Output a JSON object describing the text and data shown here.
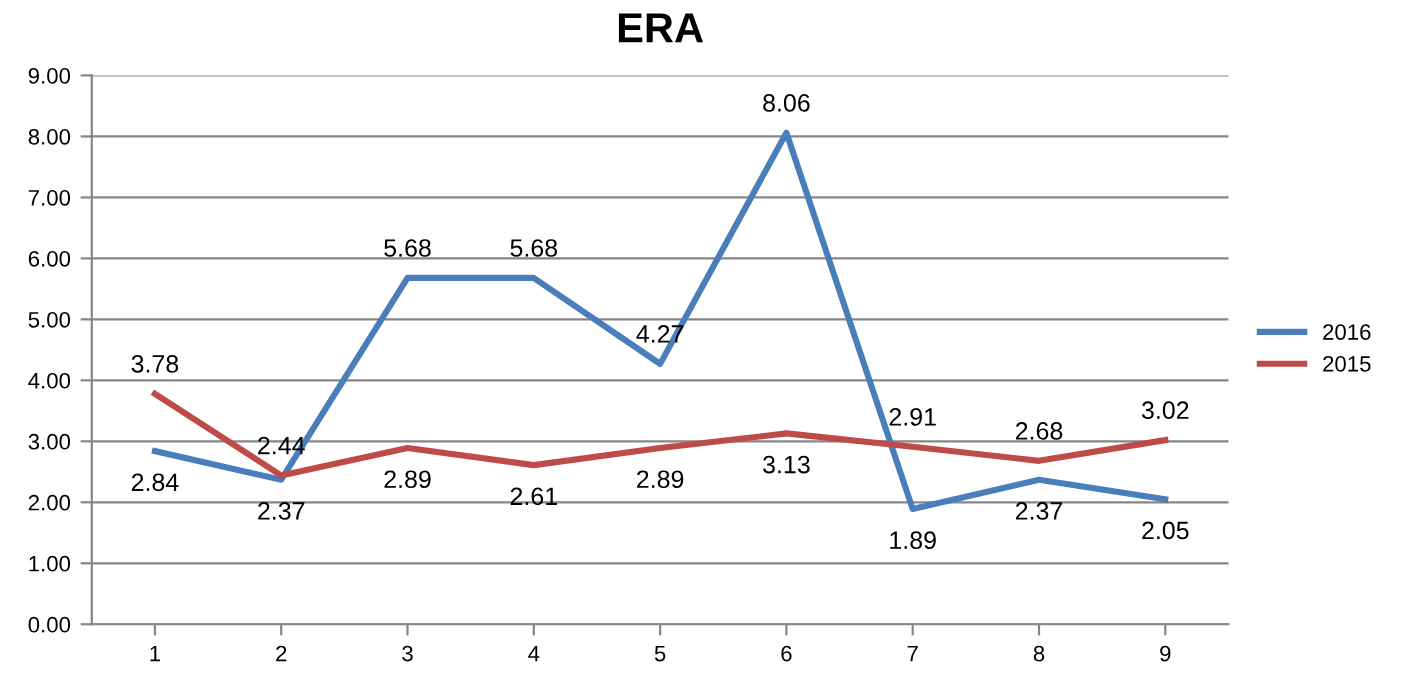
{
  "chart_data": {
    "type": "line",
    "title": "ERA",
    "categories": [
      "1",
      "2",
      "3",
      "4",
      "5",
      "6",
      "7",
      "8",
      "9"
    ],
    "series": [
      {
        "name": "2016",
        "color": "#4a7ebb",
        "values": [
          2.84,
          2.37,
          5.68,
          5.68,
          4.27,
          8.06,
          1.89,
          2.37,
          2.05
        ]
      },
      {
        "name": "2015",
        "color": "#be4b48",
        "values": [
          3.78,
          2.44,
          2.89,
          2.61,
          2.89,
          3.13,
          2.91,
          2.68,
          3.02
        ]
      }
    ],
    "ylim": [
      0,
      9
    ],
    "yticks": [
      {
        "value": 0,
        "label": "0.00"
      },
      {
        "value": 1,
        "label": "1.00"
      },
      {
        "value": 2,
        "label": "2.00"
      },
      {
        "value": 3,
        "label": "3.00"
      },
      {
        "value": 4,
        "label": "4.00"
      },
      {
        "value": 5,
        "label": "5.00"
      },
      {
        "value": 6,
        "label": "6.00"
      },
      {
        "value": 7,
        "label": "7.00"
      },
      {
        "value": 8,
        "label": "8.00"
      },
      {
        "value": 9,
        "label": "9.00"
      }
    ],
    "grid": "y",
    "legend": "right",
    "data_labels": true,
    "marker": "none",
    "line_style": "solid"
  }
}
